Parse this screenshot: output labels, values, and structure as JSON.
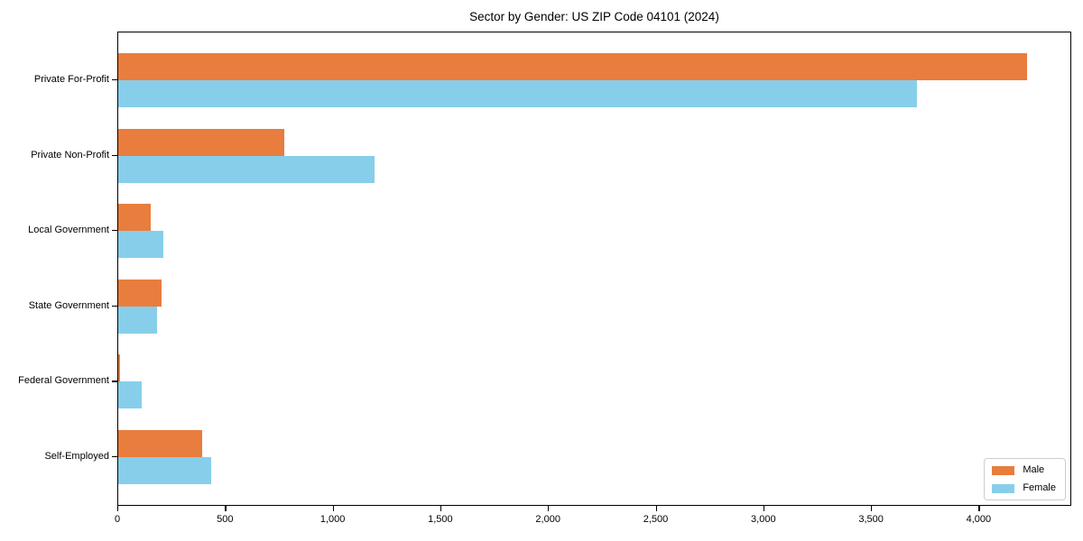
{
  "chart_data": {
    "type": "bar",
    "orientation": "horizontal",
    "title": "Sector by Gender: US ZIP Code 04101 (2024)",
    "xlabel": "",
    "ylabel": "",
    "categories": [
      "Private For-Profit",
      "Private Non-Profit",
      "Local Government",
      "State Government",
      "Federal Government",
      "Self-Employed"
    ],
    "series": [
      {
        "name": "Male",
        "color": "#e87d3e",
        "values": [
          4220,
          770,
          150,
          200,
          10,
          390
        ]
      },
      {
        "name": "Female",
        "color": "#87ceeb",
        "values": [
          3710,
          1190,
          210,
          180,
          110,
          430
        ]
      }
    ],
    "xlim": [
      0,
      4430
    ],
    "xticks": [
      0,
      500,
      1000,
      1500,
      2000,
      2500,
      3000,
      3500,
      4000
    ],
    "xtick_labels": [
      "0",
      "500",
      "1,000",
      "1,500",
      "2,000",
      "2,500",
      "3,000",
      "3,500",
      "4,000"
    ],
    "grid": false,
    "legend": {
      "position": "lower right",
      "entries": [
        {
          "label": "Male",
          "color": "#e87d3e"
        },
        {
          "label": "Female",
          "color": "#87ceeb"
        }
      ]
    },
    "style": {
      "spine_color": "#000000",
      "background": "#ffffff",
      "text_color": "#000000",
      "legend_border": "#cccccc"
    }
  }
}
